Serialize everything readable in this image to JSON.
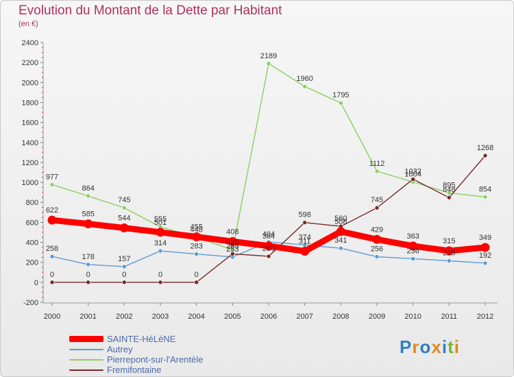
{
  "title": "Evolution du Montant de la Dette par Habitant",
  "subtitle": "(en €)",
  "logo": {
    "letters": [
      "P",
      "r",
      "o",
      "x",
      "i",
      "t",
      "i"
    ],
    "colors": [
      "#2d7fc8",
      "#e08a1e",
      "#2d7fc8",
      "#e08a1e",
      "#2d7fc8",
      "#7cb33a",
      "#e08a1e"
    ]
  },
  "chart_data": {
    "type": "line",
    "title": "Evolution du Montant de la Dette par Habitant",
    "ylabel": "(en €)",
    "xlabel": "",
    "ylim": [
      -200,
      2400
    ],
    "yticks": [
      -200,
      0,
      200,
      400,
      600,
      800,
      1000,
      1200,
      1400,
      1600,
      1800,
      2000,
      2200,
      2400
    ],
    "categories": [
      "2000",
      "2001",
      "2002",
      "2003",
      "2004",
      "2005",
      "2006",
      "2007",
      "2008",
      "2009",
      "2010",
      "2011",
      "2012"
    ],
    "grid": false,
    "legend": "bottom-left",
    "series": [
      {
        "name": "SAINTE-HéLèNE",
        "color": "#ff0000",
        "values": [
          622,
          585,
          544,
          501,
          455,
          408,
          364,
          311,
          508,
          429,
          363,
          315,
          349
        ],
        "labels": [
          "622",
          "585",
          "544",
          "501",
          "455",
          "408",
          "364",
          "311",
          "508",
          "429",
          "363",
          "315",
          "349"
        ]
      },
      {
        "name": "Autrey",
        "color": "#5b9bd5",
        "values": [
          258,
          178,
          157,
          314,
          283,
          253,
          404,
          374,
          341,
          256,
          236,
          215,
          192
        ],
        "labels": [
          "258",
          "178",
          "157",
          "314",
          "283",
          "253",
          "404",
          "374",
          "341",
          "256",
          "236",
          "215",
          "192"
        ]
      },
      {
        "name": "Pierrepont-sur-l'Arentèle",
        "color": "#88d060",
        "values": [
          977,
          864,
          745,
          555,
          448,
          325,
          2189,
          1960,
          1795,
          1112,
          1004,
          895,
          854
        ],
        "labels": [
          "977",
          "864",
          "745",
          "555",
          "448",
          "325",
          "2189",
          "1960",
          "1795",
          "1112",
          "1004",
          "895",
          "854"
        ]
      },
      {
        "name": "Fremifontaine",
        "color": "#7a2828",
        "values": [
          0,
          0,
          0,
          0,
          0,
          285,
          260,
          598,
          560,
          745,
          1032,
          848,
          1268
        ],
        "labels": [
          "0",
          "0",
          "0",
          "0",
          "0",
          "285",
          "260",
          "598",
          "560",
          "745",
          "1032",
          "848",
          "1268"
        ]
      }
    ]
  }
}
